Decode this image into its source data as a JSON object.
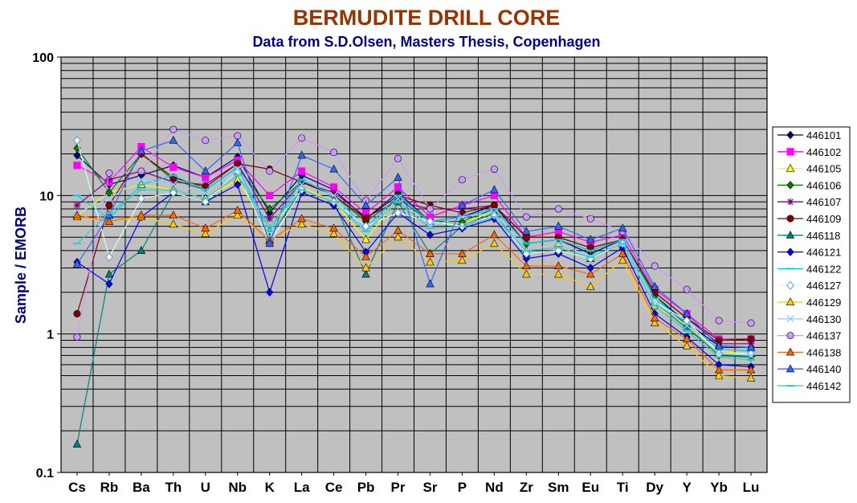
{
  "chart_data": {
    "type": "line",
    "title": "BERMUDITE DRILL CORE",
    "subtitle": "Data from S.D.Olsen, Masters Thesis, Copenhagen",
    "ylabel": "Sample / EMORB",
    "yscale": "log",
    "ylim": [
      0.1,
      100
    ],
    "yticks": [
      "0.1",
      "1",
      "10",
      "100"
    ],
    "grid": true,
    "legend_position": "right",
    "plot_background": "#c0c0c0",
    "categories": [
      "Cs",
      "Rb",
      "Ba",
      "Th",
      "U",
      "Nb",
      "K",
      "La",
      "Ce",
      "Pb",
      "Pr",
      "Sr",
      "P",
      "Nd",
      "Zr",
      "Sm",
      "Eu",
      "Ti",
      "Dy",
      "Y",
      "Yb",
      "Lu"
    ],
    "series": [
      {
        "name": "446101",
        "color": "#000080",
        "marker": "diamond",
        "values": [
          19.5,
          12,
          14,
          16.5,
          13.5,
          19,
          7.5,
          14,
          11,
          6.8,
          10.5,
          6.5,
          7,
          8.5,
          4.5,
          4.8,
          3.8,
          4.8,
          1.9,
          1.2,
          0.82,
          0.8
        ]
      },
      {
        "name": "446102",
        "color": "#ff00ff",
        "marker": "square",
        "values": [
          16.5,
          12.5,
          22.5,
          16,
          13.5,
          18,
          10,
          15,
          11.5,
          7.5,
          11.5,
          7,
          8.5,
          10,
          5,
          5.5,
          4.6,
          5.2,
          2.1,
          1.4,
          0.92,
          0.92
        ]
      },
      {
        "name": "446105",
        "color": "#ffff00",
        "marker": "triangle",
        "values": [
          7.2,
          10.5,
          12,
          11,
          9.5,
          13,
          5.5,
          11.5,
          9,
          4.8,
          9.5,
          6.5,
          6.5,
          7.5,
          4,
          4.5,
          3.6,
          4.5,
          1.6,
          1.15,
          0.75,
          0.72
        ]
      },
      {
        "name": "446106",
        "color": "#008000",
        "marker": "diamond",
        "values": [
          22,
          10.5,
          20,
          13,
          11,
          16,
          8,
          12.5,
          10,
          6.5,
          9.5,
          6.5,
          6.5,
          8,
          4.5,
          4.8,
          4,
          4.8,
          1.9,
          1.15,
          0.7,
          0.68
        ]
      },
      {
        "name": "446107",
        "color": "#800080",
        "marker": "star",
        "values": [
          8.5,
          13,
          15,
          12.5,
          12,
          17,
          6.8,
          12.5,
          10.5,
          7,
          9,
          8,
          8,
          8.5,
          5,
          5,
          4.2,
          4.8,
          2,
          1.3,
          0.85,
          0.85
        ]
      },
      {
        "name": "446109",
        "color": "#800000",
        "marker": "circle",
        "values": [
          1.4,
          8.5,
          20,
          13.5,
          11.5,
          17,
          15.5,
          12.5,
          10,
          6.8,
          10,
          8.5,
          7.5,
          8.5,
          5,
          5,
          4.2,
          4.8,
          2,
          1.3,
          0.9,
          0.92
        ]
      },
      {
        "name": "446118",
        "color": "#008080",
        "marker": "triangle",
        "values": [
          0.16,
          2.7,
          4,
          10.5,
          9,
          15,
          5,
          11,
          9,
          2.7,
          9,
          3.8,
          6,
          7.5,
          3.8,
          4,
          3.5,
          4.5,
          1.7,
          1.1,
          0.72,
          0.68
        ]
      },
      {
        "name": "446121",
        "color": "#0000ff",
        "marker": "diamond",
        "values": [
          3.3,
          2.3,
          7,
          10.5,
          9,
          12,
          2,
          10.5,
          8.5,
          3.9,
          7.5,
          5.2,
          5.8,
          6.8,
          3.5,
          3.8,
          3,
          4.2,
          1.4,
          0.95,
          0.6,
          0.58
        ]
      },
      {
        "name": "446122",
        "color": "#00ccff",
        "marker": "dash",
        "values": [
          10,
          6.8,
          12,
          14,
          11,
          16,
          5.5,
          13,
          10,
          5.8,
          10,
          6.5,
          7,
          8,
          4.5,
          4.8,
          4,
          4.8,
          1.8,
          1.2,
          0.78,
          0.75
        ]
      },
      {
        "name": "446127",
        "color": "#ccffff",
        "marker": "diamond-open",
        "values": [
          25,
          3.6,
          9.5,
          10.5,
          9,
          15,
          4.5,
          11,
          9,
          6,
          7.5,
          6.5,
          6,
          7.2,
          3.8,
          4,
          3.5,
          4.5,
          1.7,
          1.25,
          0.72,
          0.72
        ]
      },
      {
        "name": "446129",
        "color": "#ffcc00",
        "marker": "triangle",
        "values": [
          7,
          6.5,
          7,
          6.2,
          5.3,
          7.2,
          4.8,
          6.2,
          5.3,
          3,
          5,
          3.3,
          3.4,
          4.5,
          2.7,
          2.7,
          2.2,
          3.4,
          1.2,
          0.82,
          0.5,
          0.48
        ]
      },
      {
        "name": "446130",
        "color": "#99ccff",
        "marker": "cross",
        "values": [
          7.5,
          9.5,
          13,
          12,
          10.5,
          15.5,
          5,
          12,
          10,
          5.5,
          9.5,
          6,
          7,
          7.5,
          4,
          4.5,
          3.6,
          4.5,
          1.7,
          1.15,
          0.72,
          0.7
        ]
      },
      {
        "name": "446137",
        "color": "#cc99ff",
        "marker": "circle",
        "values": [
          0.95,
          14.5,
          15,
          30,
          25,
          27,
          15,
          26,
          20.5,
          9.2,
          18.5,
          8,
          13,
          15.5,
          7,
          8,
          6.8,
          5.5,
          3.1,
          2.1,
          1.25,
          1.2
        ]
      },
      {
        "name": "446138",
        "color": "#ff6600",
        "marker": "triangle",
        "values": [
          7.2,
          6.5,
          7.2,
          7.2,
          5.8,
          7.8,
          4.7,
          6.8,
          5.8,
          3.6,
          5.6,
          3.8,
          3.8,
          5.2,
          3.1,
          3.1,
          2.7,
          3.8,
          1.3,
          0.92,
          0.55,
          0.55
        ]
      },
      {
        "name": "446140",
        "color": "#3366ff",
        "marker": "triangle",
        "values": [
          3.2,
          7.2,
          21,
          25,
          15,
          24,
          4.5,
          19.5,
          15.5,
          8.5,
          13.5,
          2.3,
          8.5,
          11,
          5.5,
          6,
          4.8,
          5.8,
          2.2,
          1.4,
          0.82,
          0.8
        ]
      },
      {
        "name": "446142",
        "color": "#33cccc",
        "marker": "dash",
        "values": [
          4.5,
          7.5,
          11,
          11,
          9.5,
          14,
          6,
          11,
          9,
          5.5,
          9,
          5.8,
          6,
          7,
          4,
          4.2,
          3.6,
          4.5,
          1.6,
          1.05,
          0.68,
          0.65
        ]
      }
    ]
  }
}
